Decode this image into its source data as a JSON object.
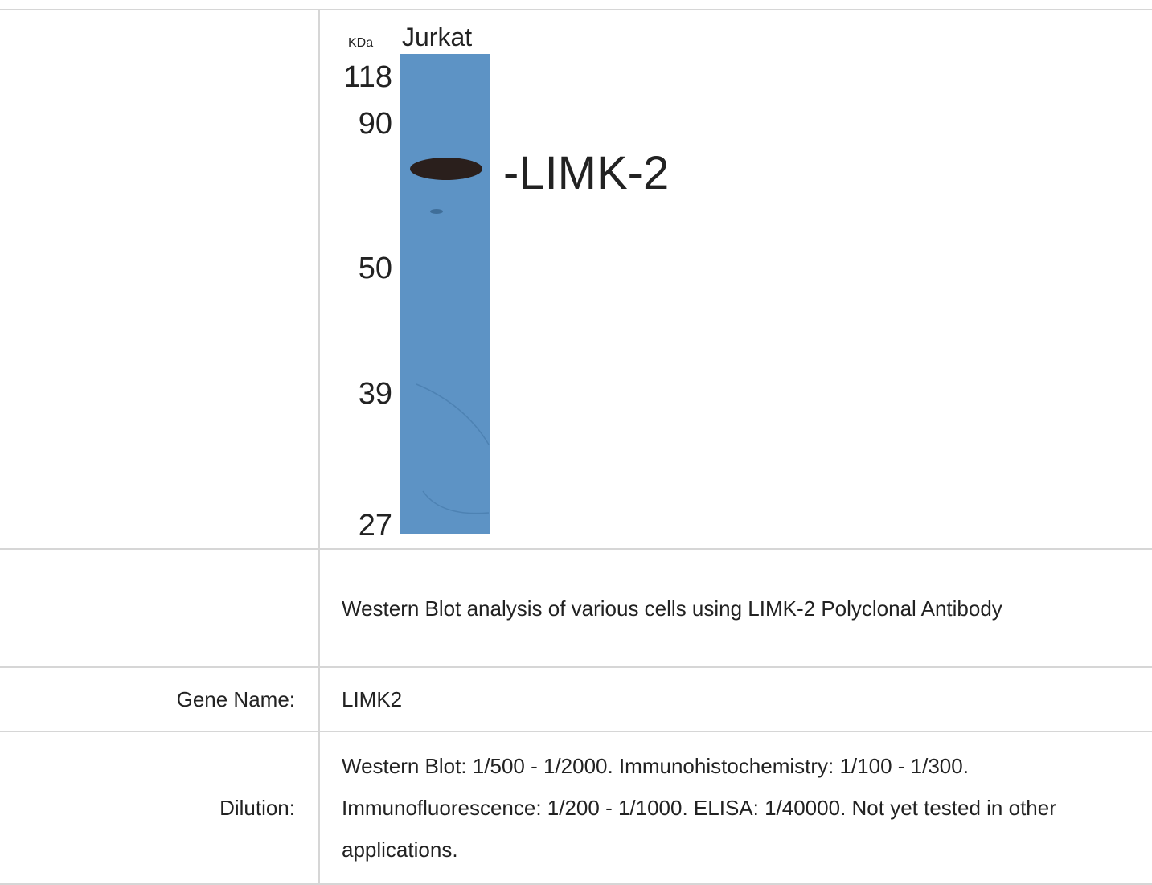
{
  "image": {
    "unit_label": "KDa",
    "lane_label": "Jurkat",
    "markers": [
      118,
      90,
      50,
      39,
      27
    ],
    "band_label": "-LIMK-2"
  },
  "rows": [
    {
      "value": "Western Blot analysis of various cells using LIMK-2 Polyclonal Antibody"
    },
    {
      "label": "Gene Name:",
      "value": "LIMK2"
    },
    {
      "label": "Dilution:",
      "value": "Western Blot: 1/500 - 1/2000. Immunohistochemistry: 1/100 - 1/300. Immunofluorescence: 1/200 - 1/1000. ELISA: 1/40000. Not yet tested in other applications."
    }
  ]
}
